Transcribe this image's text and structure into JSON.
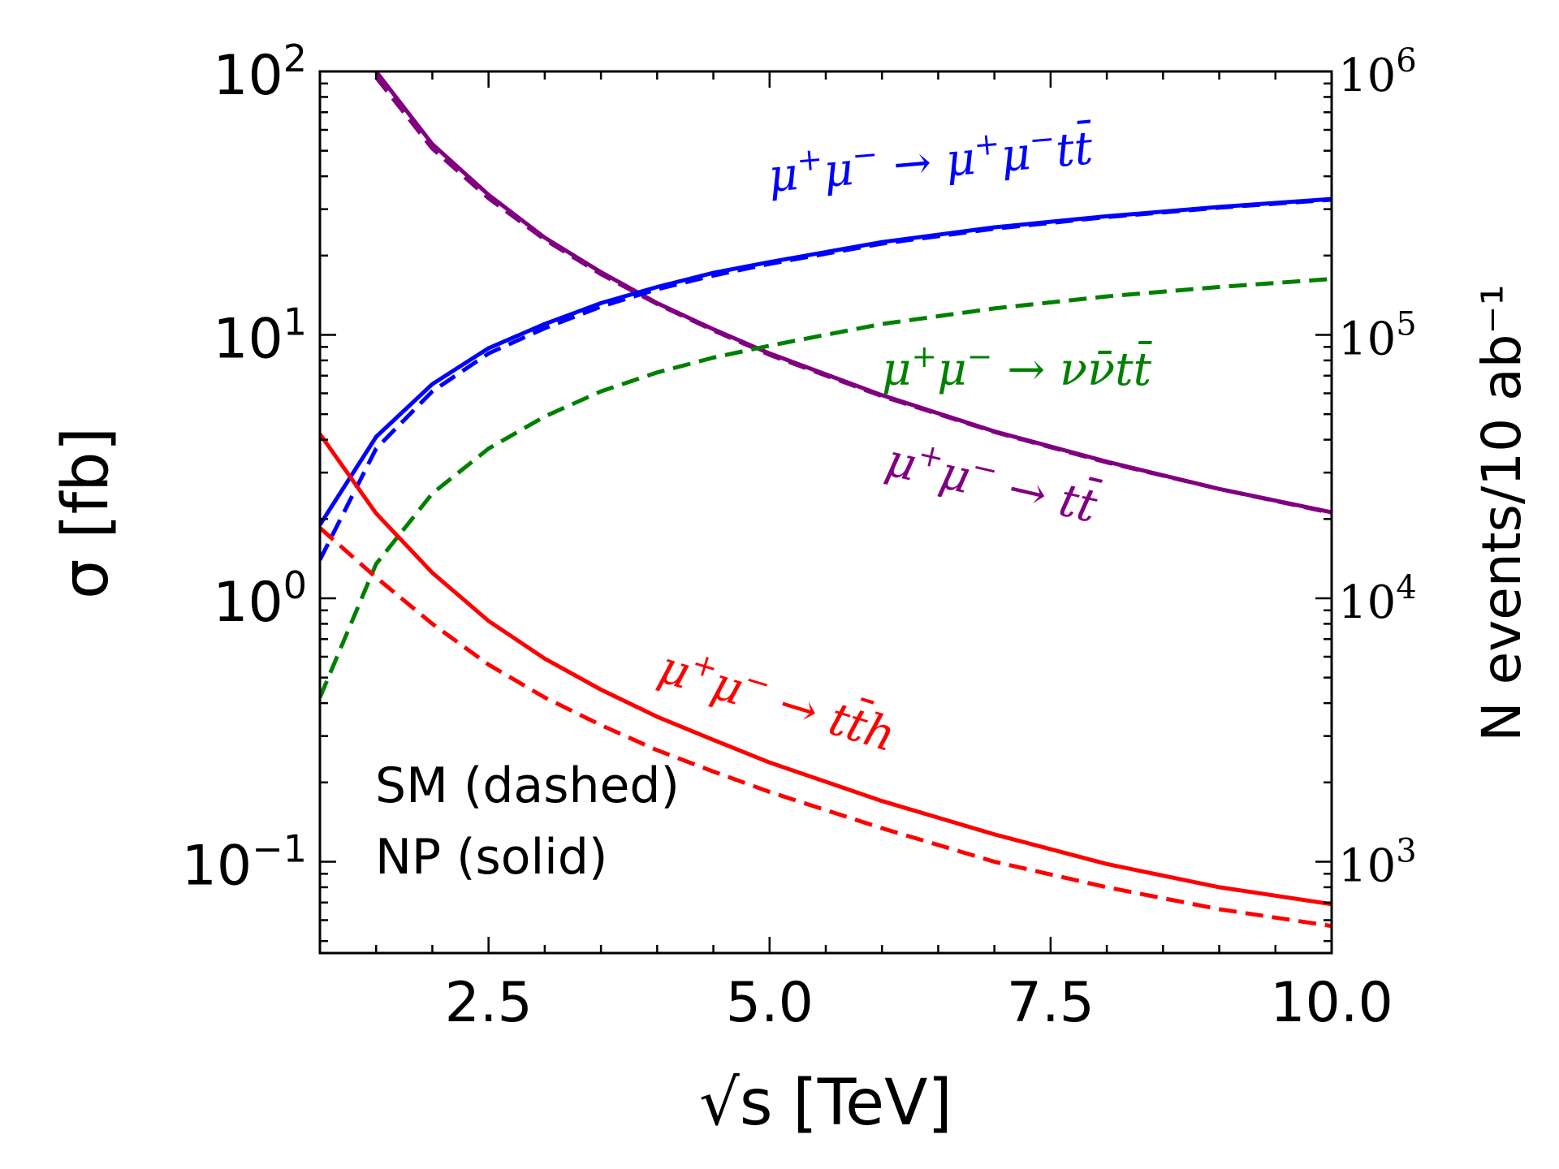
{
  "chart_data": {
    "type": "line",
    "xlabel": "√s [TeV]",
    "ylabel": "σ [fb]",
    "y2label": "N events/10 ab⁻¹",
    "xlim": [
      1,
      10
    ],
    "ylim": [
      0.045,
      100
    ],
    "yscale": "log",
    "y2_scale_factor": 10000,
    "grid": false,
    "x_ticks": [
      2.5,
      5.0,
      7.5,
      10.0
    ],
    "x_tick_labels": [
      "2.5",
      "5.0",
      "7.5",
      "10.0"
    ],
    "y_tick_labels": [
      {
        "value": 100,
        "base": "10",
        "exp": "2"
      },
      {
        "value": 10,
        "base": "10",
        "exp": "1"
      },
      {
        "value": 1,
        "base": "10",
        "exp": "0"
      },
      {
        "value": 0.1,
        "base": "10",
        "exp": "−1"
      }
    ],
    "y2_tick_labels": [
      {
        "value": 100,
        "base": "10",
        "exp": "6"
      },
      {
        "value": 10,
        "base": "10",
        "exp": "5"
      },
      {
        "value": 1,
        "base": "10",
        "exp": "4"
      },
      {
        "value": 0.1,
        "base": "10",
        "exp": "3"
      }
    ],
    "legend_note": [
      "SM (dashed)",
      "NP (solid)"
    ],
    "series": [
      {
        "process": "mumu_tt",
        "style": "solid",
        "color": "#800080",
        "x": [
          1.5,
          2,
          2.5,
          3,
          3.5,
          4,
          4.5,
          5,
          6,
          7,
          8,
          9,
          10
        ],
        "y": [
          100,
          53,
          34,
          23.4,
          17.3,
          13.2,
          10.5,
          8.5,
          5.9,
          4.3,
          3.3,
          2.6,
          2.12
        ]
      },
      {
        "process": "mumu_tt",
        "style": "dashed",
        "color": "#800080",
        "x": [
          1.5,
          2,
          2.5,
          3,
          3.5,
          4,
          4.5,
          5,
          6,
          7,
          8,
          9,
          10
        ],
        "y": [
          95,
          51,
          33,
          23,
          17,
          13.1,
          10.4,
          8.4,
          5.85,
          4.28,
          3.28,
          2.6,
          2.11
        ]
      },
      {
        "process": "mumu_mumutt",
        "style": "solid",
        "color": "#0000ff",
        "x": [
          1,
          1.5,
          2,
          2.5,
          3,
          3.5,
          4,
          4.5,
          5,
          6,
          7,
          8,
          9,
          10
        ],
        "y": [
          1.9,
          4.1,
          6.5,
          8.9,
          11,
          13.2,
          15.2,
          17.2,
          18.9,
          22.5,
          25.6,
          28.2,
          30.6,
          32.8
        ]
      },
      {
        "process": "mumu_mumutt",
        "style": "dashed",
        "color": "#0000ff",
        "x": [
          1,
          1.5,
          2,
          2.5,
          3,
          3.5,
          4,
          4.5,
          5,
          6,
          7,
          8,
          9,
          10
        ],
        "y": [
          1.4,
          3.7,
          6.1,
          8.5,
          10.6,
          12.8,
          14.9,
          16.8,
          18.6,
          22.2,
          25.3,
          28,
          30.4,
          32.6
        ]
      },
      {
        "process": "mumu_nunutt",
        "style": "dashed",
        "color": "#008000",
        "x": [
          1,
          1.5,
          2,
          2.5,
          3,
          3.5,
          4,
          4.5,
          5,
          6,
          7,
          8,
          9,
          10
        ],
        "y": [
          0.42,
          1.35,
          2.5,
          3.7,
          4.9,
          6.1,
          7.2,
          8.2,
          9.1,
          11,
          12.6,
          14,
          15.2,
          16.3
        ]
      },
      {
        "process": "mumu_tth",
        "style": "solid",
        "color": "#ff0000",
        "x": [
          1,
          1.5,
          2,
          2.5,
          3,
          3.5,
          4,
          4.5,
          5,
          6,
          7,
          8,
          9,
          10
        ],
        "y": [
          4.2,
          2.1,
          1.25,
          0.82,
          0.59,
          0.45,
          0.355,
          0.29,
          0.238,
          0.17,
          0.127,
          0.098,
          0.08,
          0.069
        ]
      },
      {
        "process": "mumu_tth",
        "style": "dashed",
        "color": "#ff0000",
        "x": [
          1,
          1.5,
          2,
          2.5,
          3,
          3.5,
          4,
          4.5,
          5,
          6,
          7,
          8,
          9,
          10
        ],
        "y": [
          1.85,
          1.2,
          0.8,
          0.56,
          0.42,
          0.33,
          0.265,
          0.22,
          0.184,
          0.134,
          0.1,
          0.08,
          0.066,
          0.057
        ]
      }
    ],
    "annotations": [
      {
        "id": "mumu_mumutt",
        "color": "#0000ff",
        "parts": [
          "μ",
          "+",
          "μ",
          "−",
          " → ",
          "μ",
          "+",
          "μ",
          "−",
          "tt̄"
        ],
        "rotate": -5
      },
      {
        "id": "mumu_nunutt",
        "color": "#008000",
        "parts": [
          "μ",
          "+",
          "μ",
          "−",
          " → ",
          "",
          "",
          "",
          "",
          "νν̄tt̄"
        ],
        "rotate": 0
      },
      {
        "id": "mumu_tt",
        "color": "#800080",
        "parts": [
          "μ",
          "+",
          "μ",
          "−",
          " → ",
          "",
          "",
          "",
          "",
          "tt̄"
        ],
        "rotate": 13
      },
      {
        "id": "mumu_tth",
        "color": "#ff0000",
        "parts": [
          "μ",
          "+",
          "μ",
          "−",
          " → ",
          "",
          "",
          "",
          "",
          "tt̄h"
        ],
        "rotate": 17
      }
    ]
  }
}
